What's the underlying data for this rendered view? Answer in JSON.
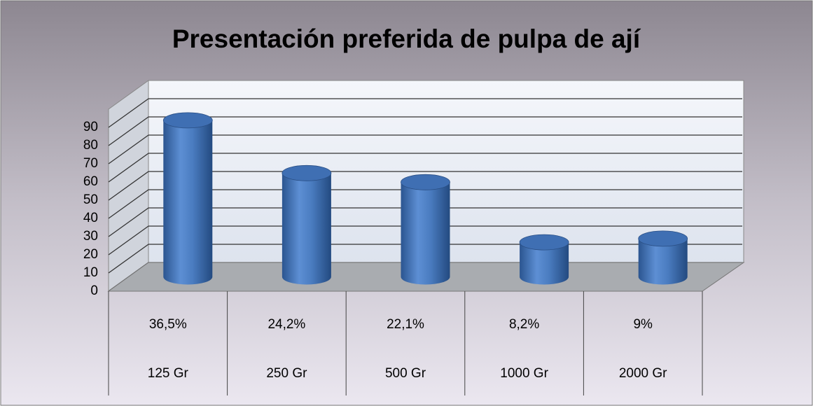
{
  "chart_data": {
    "type": "bar3d",
    "title": "Presentación preferida de pulpa de ají",
    "categories": [
      "125 Gr",
      "250 Gr",
      "500 Gr",
      "1000 Gr",
      "2000 Gr"
    ],
    "percentages": [
      "36,5%",
      "24,2%",
      "22,1%",
      "8,2%",
      "9%"
    ],
    "values": [
      86,
      57,
      52,
      19,
      21
    ],
    "color": "#4f81bd",
    "ylim": [
      0,
      100
    ],
    "yticks": [
      0,
      10,
      20,
      30,
      40,
      50,
      60,
      70,
      80,
      90
    ],
    "grid": true
  }
}
